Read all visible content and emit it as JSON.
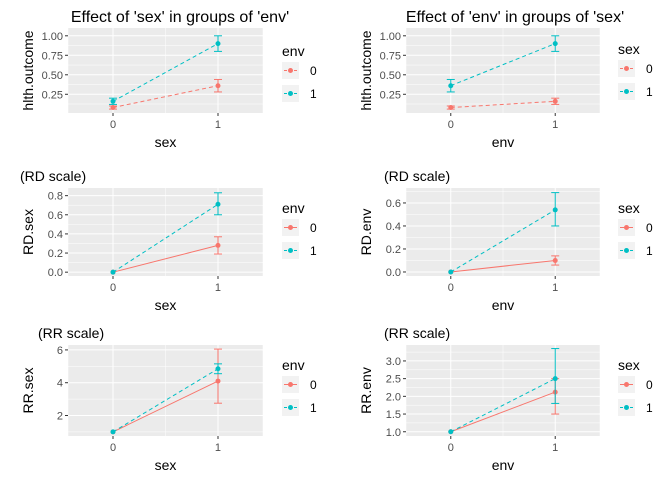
{
  "colors": {
    "group0": "#F8766D",
    "group1": "#00BFC4"
  },
  "chart_data": [
    {
      "type": "line",
      "title": "Effect of 'sex' in groups of 'env'",
      "xlabel": "sex",
      "ylabel": "hlth.outcome",
      "categories": [
        "0",
        "1"
      ],
      "ylim": [
        0.01,
        1.1
      ],
      "yticks": [
        0.25,
        0.5,
        0.75,
        1.0
      ],
      "ytick_labels": [
        "0.25",
        "0.50",
        "0.75",
        "1.00"
      ],
      "legend_title": "env",
      "legend_labels": [
        "0",
        "1"
      ],
      "series": [
        {
          "name": "0",
          "values": [
            0.08,
            0.36
          ],
          "lower": [
            0.06,
            0.28
          ],
          "upper": [
            0.1,
            0.44
          ],
          "linetype": "dashed"
        },
        {
          "name": "1",
          "values": [
            0.16,
            0.9
          ],
          "lower": [
            0.12,
            0.8
          ],
          "upper": [
            0.2,
            1.0
          ],
          "linetype": "dashed"
        }
      ]
    },
    {
      "type": "line",
      "title": "Effect of 'env' in groups of 'sex'",
      "xlabel": "env",
      "ylabel": "hlth.outcome",
      "categories": [
        "0",
        "1"
      ],
      "ylim": [
        0.01,
        1.1
      ],
      "yticks": [
        0.25,
        0.5,
        0.75,
        1.0
      ],
      "ytick_labels": [
        "0.25",
        "0.50",
        "0.75",
        "1.00"
      ],
      "legend_title": "sex",
      "legend_labels": [
        "0",
        "1"
      ],
      "series": [
        {
          "name": "0",
          "values": [
            0.08,
            0.16
          ],
          "lower": [
            0.06,
            0.12
          ],
          "upper": [
            0.1,
            0.2
          ],
          "linetype": "dashed"
        },
        {
          "name": "1",
          "values": [
            0.36,
            0.9
          ],
          "lower": [
            0.28,
            0.8
          ],
          "upper": [
            0.44,
            1.0
          ],
          "linetype": "dashed"
        }
      ]
    },
    {
      "type": "line",
      "title": "(RD scale)",
      "xlabel": "sex",
      "ylabel": "RD.sex",
      "categories": [
        "0",
        "1"
      ],
      "ylim": [
        -0.04,
        0.88
      ],
      "yticks": [
        0.0,
        0.2,
        0.4,
        0.6,
        0.8
      ],
      "ytick_labels": [
        "0.0",
        "0.2",
        "0.4",
        "0.6",
        "0.8"
      ],
      "legend_title": "env",
      "legend_labels": [
        "0",
        "1"
      ],
      "series": [
        {
          "name": "0",
          "values": [
            0.0,
            0.28
          ],
          "lower": [
            0.0,
            0.19
          ],
          "upper": [
            0.0,
            0.37
          ],
          "linetype": "solid"
        },
        {
          "name": "1",
          "values": [
            0.0,
            0.71
          ],
          "lower": [
            0.0,
            0.6
          ],
          "upper": [
            0.0,
            0.83
          ],
          "linetype": "dashed"
        }
      ]
    },
    {
      "type": "line",
      "title": "(RD scale)",
      "xlabel": "env",
      "ylabel": "RD.env",
      "categories": [
        "0",
        "1"
      ],
      "ylim": [
        -0.035,
        0.73
      ],
      "yticks": [
        0.0,
        0.2,
        0.4,
        0.6
      ],
      "ytick_labels": [
        "0.0",
        "0.2",
        "0.4",
        "0.6"
      ],
      "legend_title": "sex",
      "legend_labels": [
        "0",
        "1"
      ],
      "series": [
        {
          "name": "0",
          "values": [
            0.0,
            0.1
          ],
          "lower": [
            0.0,
            0.06
          ],
          "upper": [
            0.0,
            0.14
          ],
          "linetype": "solid"
        },
        {
          "name": "1",
          "values": [
            0.0,
            0.54
          ],
          "lower": [
            0.0,
            0.4
          ],
          "upper": [
            0.0,
            0.69
          ],
          "linetype": "dashed"
        }
      ]
    },
    {
      "type": "line",
      "title": "(RR scale)",
      "xlabel": "sex",
      "ylabel": "RR.sex",
      "categories": [
        "0",
        "1"
      ],
      "ylim": [
        0.75,
        6.3
      ],
      "yticks": [
        2,
        4,
        6
      ],
      "ytick_labels": [
        "2",
        "4",
        "6"
      ],
      "legend_title": "env",
      "legend_labels": [
        "0",
        "1"
      ],
      "series": [
        {
          "name": "0",
          "values": [
            1.0,
            4.1
          ],
          "lower": [
            1.0,
            2.75
          ],
          "upper": [
            1.0,
            6.05
          ],
          "linetype": "solid"
        },
        {
          "name": "1",
          "values": [
            1.0,
            4.85
          ],
          "lower": [
            1.0,
            4.55
          ],
          "upper": [
            1.0,
            5.15
          ],
          "linetype": "dashed"
        }
      ]
    },
    {
      "type": "line",
      "title": "(RR scale)",
      "xlabel": "env",
      "ylabel": "RR.env",
      "categories": [
        "0",
        "1"
      ],
      "ylim": [
        0.88,
        3.45
      ],
      "yticks": [
        1.0,
        1.5,
        2.0,
        2.5,
        3.0
      ],
      "ytick_labels": [
        "1.0",
        "1.5",
        "2.0",
        "2.5",
        "3.0"
      ],
      "legend_title": "sex",
      "legend_labels": [
        "0",
        "1"
      ],
      "series": [
        {
          "name": "0",
          "values": [
            1.0,
            2.12
          ],
          "lower": [
            1.0,
            1.5
          ],
          "upper": [
            1.0,
            2.5
          ],
          "linetype": "solid"
        },
        {
          "name": "1",
          "values": [
            1.0,
            2.5
          ],
          "lower": [
            1.0,
            1.8
          ],
          "upper": [
            1.0,
            3.35
          ],
          "linetype": "dashed"
        }
      ]
    }
  ]
}
